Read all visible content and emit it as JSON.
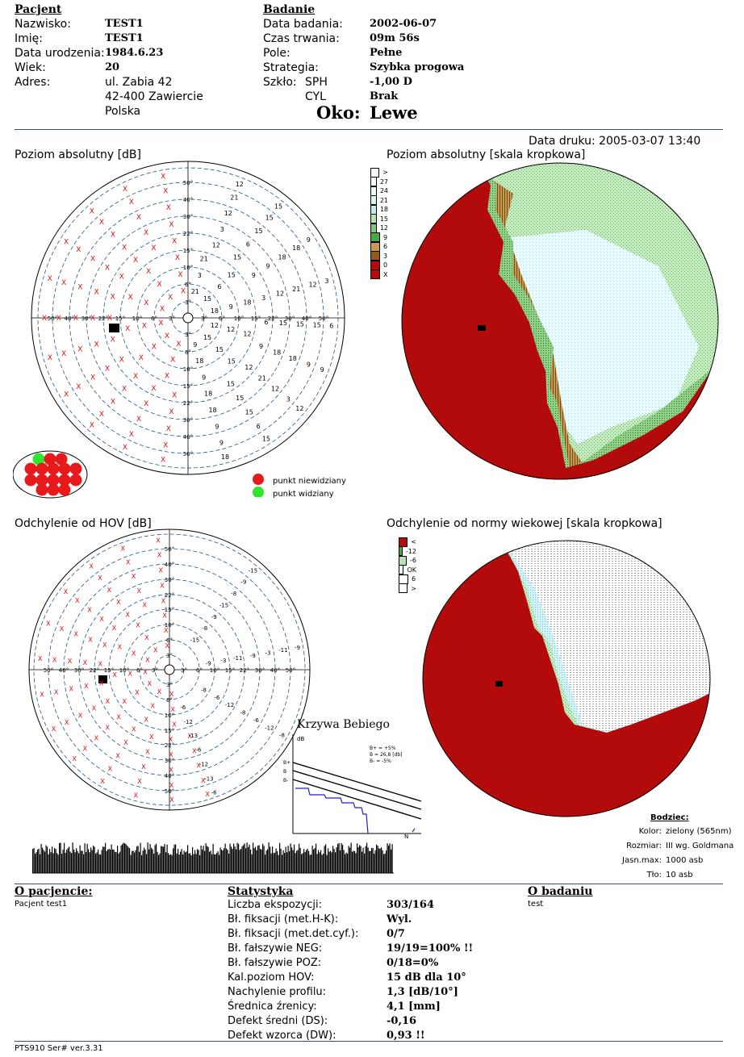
{
  "patient": {
    "heading": "Pacjent",
    "surname_label": "Nazwisko:",
    "surname": "TEST1",
    "name_label": "Imię:",
    "name": "TEST1",
    "dob_label": "Data urodzenia:",
    "dob": "1984.6.23",
    "age_label": "Wiek:",
    "age": "20",
    "address_label": "Adres:",
    "address_line1": "ul. Zabia 42",
    "address_line2": "42-400 Zawiercie",
    "address_line3": "Polska"
  },
  "exam": {
    "heading": "Badanie",
    "date_label": "Data badania:",
    "date": "2002-06-07",
    "duration_label": "Czas trwania:",
    "duration": "09m 56s",
    "field_label": "Pole:",
    "field": "Pełne",
    "strategy_label": "Strategia:",
    "strategy": "Szybka progowa",
    "glass_label": "Szkło:",
    "sph_label": "SPH",
    "sph": "-1,00 D",
    "cyl_label": "CYL",
    "cyl": "Brak",
    "eye_label": "Oko:",
    "eye": "Lewe"
  },
  "print_date": "Data druku: 2005-03-07  13:40",
  "panels": {
    "abs_db": "Poziom absolutny [dB]",
    "abs_dot": "Poziom absolutny [skala kropkowa]",
    "dev_hov": "Odchylenie od HOV [dB]",
    "dev_norm": "Odchylenie od normy wiekowej [skala kropkowa]"
  },
  "fixation_legend": {
    "unseen": "punkt niewidziany",
    "seen": "punkt widziany",
    "unseen_color": "#e8191b",
    "seen_color": "#2ee62e"
  },
  "abs_scale": [
    ">",
    "27",
    "24",
    "21",
    "18",
    "15",
    "12",
    "9",
    "6",
    "3",
    "0",
    "X"
  ],
  "dev_scale": [
    "<",
    "-12",
    "-6",
    "OK",
    "6",
    ">"
  ],
  "bebie": {
    "title": "Krzywa Bebiego",
    "y_unit": "dB",
    "b_plus": "B+ = +5%",
    "b_mid": "B = 26,8 [db]",
    "b_minus": "B- = -5%",
    "lbl_bplus": "B+",
    "lbl_b": "B",
    "lbl_bminus": "B-",
    "lbl_n": "N"
  },
  "stimulus": {
    "heading": "Bodziec:",
    "color_label": "Kolor:",
    "color": "zielony (565nm)",
    "size_label": "Rozmiar:",
    "size": "III wg. Goldmana",
    "brightness_label": "Jasn.max:",
    "brightness": "1000 asb",
    "background_label": "Tło:",
    "background": "10 asb"
  },
  "about_patient": {
    "heading": "O pacjencie:",
    "text": "Pacjent test1"
  },
  "about_exam": {
    "heading": "O badaniu",
    "text": "test"
  },
  "stats": {
    "heading": "Statystyka",
    "rows": [
      {
        "label": "Liczba ekspozycji:",
        "value": "303/164"
      },
      {
        "label": "Bł. fiksacji (met.H-K):",
        "value": "Wyl."
      },
      {
        "label": "Bł. fiksacji (met.det.cyf.):",
        "value": "0/7"
      },
      {
        "label": "Bł. fałszywie NEG:",
        "value": "19/19=100% !!"
      },
      {
        "label": "Bł. fałszywie POZ:",
        "value": "0/18=0%"
      },
      {
        "label": "Kal.poziom HOV:",
        "value": "15 dB dla 10°"
      },
      {
        "label": "Nachylenie profilu:",
        "value": "1,3 [dB/10°]"
      },
      {
        "label": "Średnica źrenicy:",
        "value": "4,1 [mm]"
      },
      {
        "label": "Defekt średni (DS):",
        "value": "-0,16"
      },
      {
        "label": "Defekt wzorca (DW):",
        "value": "0,93 !!"
      }
    ]
  },
  "footer": "PTS910 Ser#  ver.3.31",
  "colors": {
    "red": "#b30b0b",
    "rule": "#3b4a8a",
    "dashed_circle": "#1f5a8a",
    "x_mark": "#e01010"
  }
}
